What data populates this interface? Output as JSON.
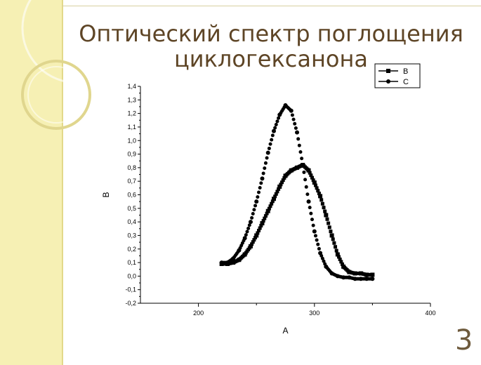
{
  "slide": {
    "title_line1": "Оптический спектр поглощения",
    "title_line2": "циклогексанона",
    "page_number": "3"
  },
  "chart_data": {
    "type": "scatter",
    "xlabel": "A",
    "ylabel": "B",
    "xlim": [
      150,
      400
    ],
    "ylim": [
      -0.2,
      1.4
    ],
    "x_ticks": [
      "200",
      "300",
      "400"
    ],
    "y_ticks": [
      "-0,2",
      "-0,1",
      "0,0",
      "0,1",
      "0,2",
      "0,3",
      "0,4",
      "0,5",
      "0,6",
      "0,7",
      "0,8",
      "0,9",
      "1,0",
      "1,1",
      "1,2",
      "1,3",
      "1,4"
    ],
    "legend_position": "top-right",
    "series": [
      {
        "name": "B",
        "marker": "square",
        "color": "#000000",
        "x": [
          220,
          225,
          230,
          235,
          240,
          245,
          250,
          255,
          260,
          265,
          270,
          275,
          280,
          285,
          290,
          295,
          300,
          305,
          310,
          315,
          320,
          325,
          330,
          335,
          340,
          345,
          350
        ],
        "y": [
          0.09,
          0.09,
          0.1,
          0.12,
          0.16,
          0.22,
          0.3,
          0.39,
          0.48,
          0.57,
          0.66,
          0.74,
          0.78,
          0.8,
          0.82,
          0.78,
          0.69,
          0.59,
          0.45,
          0.3,
          0.16,
          0.07,
          0.03,
          0.02,
          0.02,
          0.01,
          0.01
        ]
      },
      {
        "name": "C",
        "marker": "circle",
        "color": "#000000",
        "x": [
          220,
          225,
          230,
          235,
          240,
          245,
          250,
          255,
          260,
          265,
          270,
          275,
          280,
          285,
          290,
          295,
          300,
          305,
          310,
          315,
          320,
          325,
          330,
          335,
          340,
          345,
          350
        ],
        "y": [
          0.1,
          0.1,
          0.13,
          0.19,
          0.28,
          0.4,
          0.55,
          0.72,
          0.91,
          1.07,
          1.19,
          1.26,
          1.22,
          1.06,
          0.82,
          0.55,
          0.33,
          0.17,
          0.07,
          0.02,
          0.0,
          -0.01,
          -0.01,
          -0.02,
          -0.02,
          -0.02,
          -0.02
        ]
      }
    ]
  }
}
